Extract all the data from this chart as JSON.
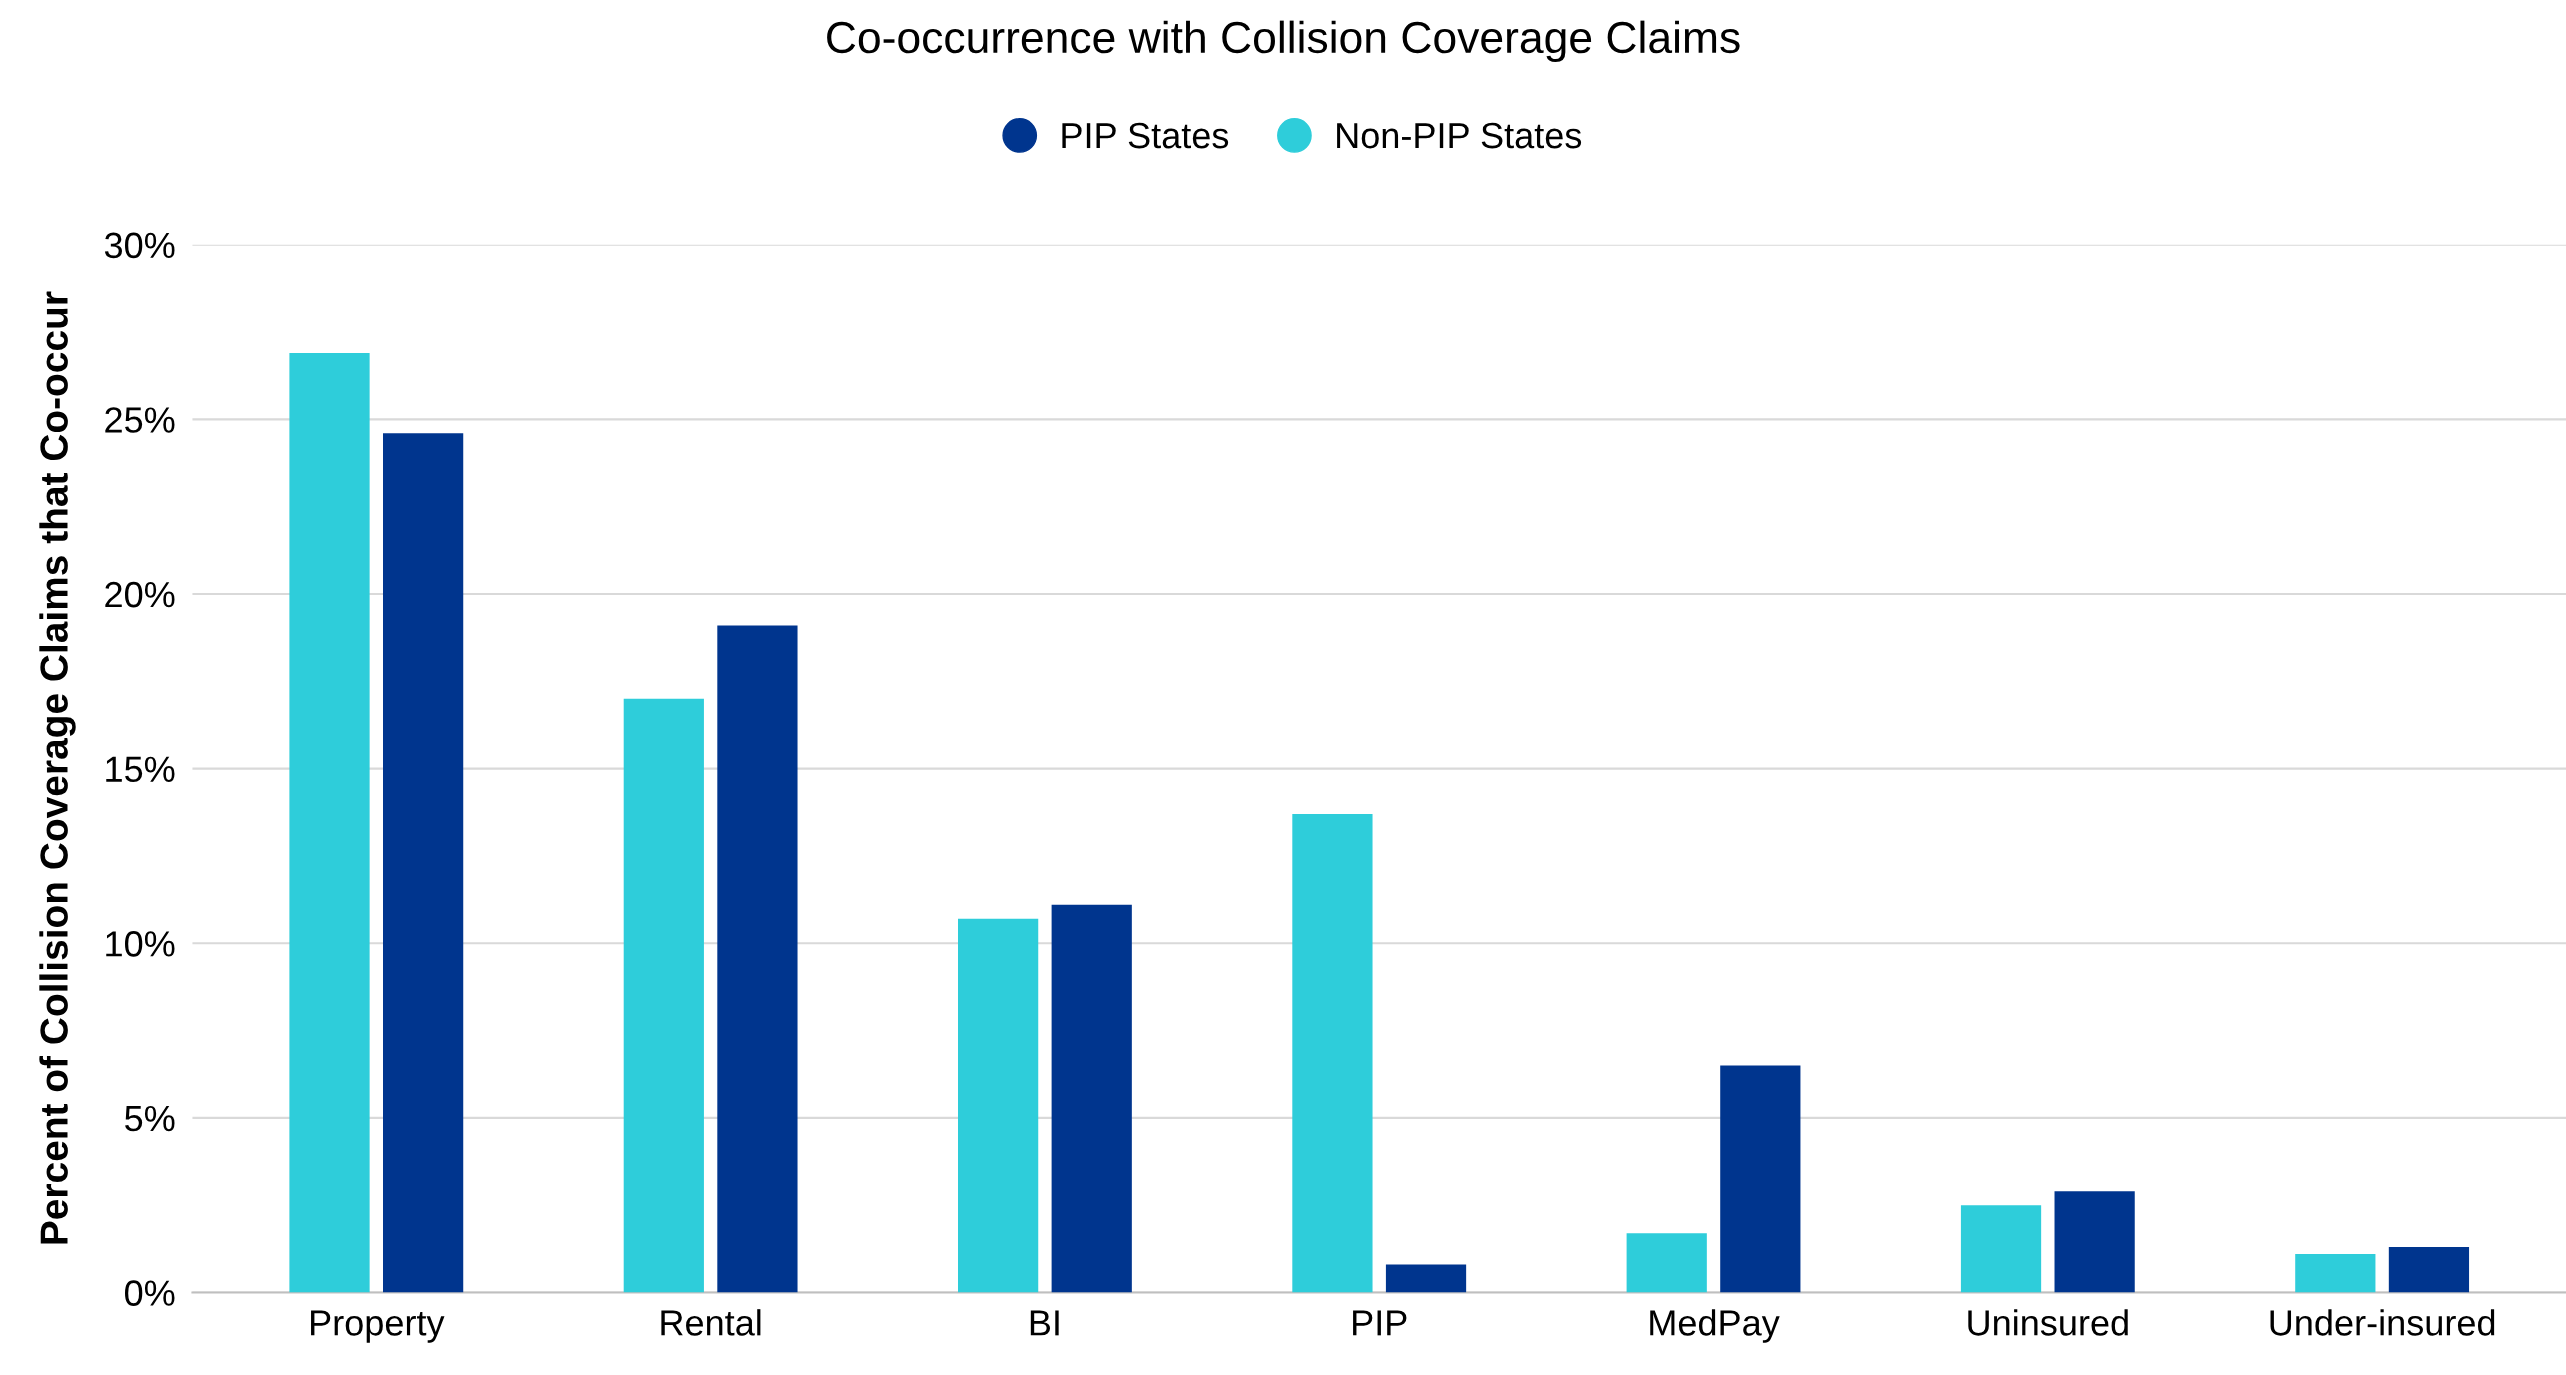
{
  "chart_data": {
    "type": "bar",
    "title": "Co-occurrence with Collision Coverage Claims",
    "ylabel": "Percent of Collision Coverage Claims that Co-occur",
    "categories": [
      "Property",
      "Rental",
      "BI",
      "PIP",
      "MedPay",
      "Uninsured",
      "Under-insured"
    ],
    "series": [
      {
        "name": "Non-PIP States",
        "color": "#2ecdda",
        "values": [
          26.9,
          17.0,
          10.7,
          13.7,
          1.7,
          2.5,
          1.1
        ]
      },
      {
        "name": "PIP States",
        "color": "#00358e",
        "values": [
          24.6,
          19.1,
          11.1,
          0.8,
          6.5,
          2.9,
          1.3
        ]
      }
    ],
    "ylim": [
      0,
      30
    ],
    "yticks": [
      {
        "value": 0,
        "label": "0%"
      },
      {
        "value": 5,
        "label": "5%"
      },
      {
        "value": 10,
        "label": "10%"
      },
      {
        "value": 15,
        "label": "15%"
      },
      {
        "value": 20,
        "label": "20%"
      },
      {
        "value": 25,
        "label": "25%"
      },
      {
        "value": 30,
        "label": "30%"
      }
    ],
    "grid": "y",
    "legend": "top"
  }
}
